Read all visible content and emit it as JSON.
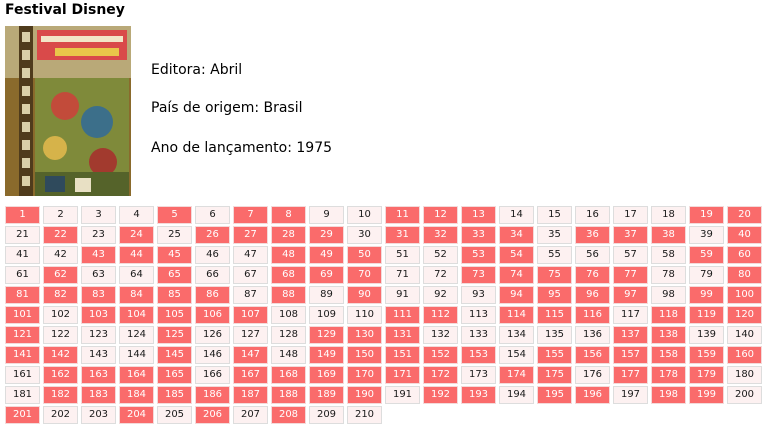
{
  "page": {
    "title": "Festival Disney",
    "cover_alt": "Festival Disney cover"
  },
  "info": {
    "publisher": "Editora: Abril",
    "country": "País de origem: Brasil",
    "year": "Ano de lançamento: 1975"
  },
  "colors": {
    "have": "#fa6b6b",
    "missing": "#fdf1f1"
  },
  "issues": {
    "total": 210,
    "missing": [
      2,
      3,
      4,
      6,
      9,
      10,
      14,
      15,
      16,
      17,
      18,
      21,
      23,
      25,
      30,
      35,
      39,
      41,
      42,
      46,
      47,
      51,
      52,
      55,
      56,
      57,
      58,
      61,
      63,
      64,
      66,
      67,
      71,
      72,
      78,
      79,
      87,
      89,
      91,
      92,
      93,
      98,
      102,
      108,
      109,
      110,
      113,
      117,
      122,
      123,
      124,
      126,
      127,
      128,
      132,
      133,
      134,
      135,
      136,
      139,
      140,
      143,
      144,
      146,
      148,
      154,
      161,
      166,
      173,
      176,
      180,
      181,
      191,
      194,
      197,
      200,
      202,
      203,
      205,
      207,
      209,
      210
    ]
  }
}
